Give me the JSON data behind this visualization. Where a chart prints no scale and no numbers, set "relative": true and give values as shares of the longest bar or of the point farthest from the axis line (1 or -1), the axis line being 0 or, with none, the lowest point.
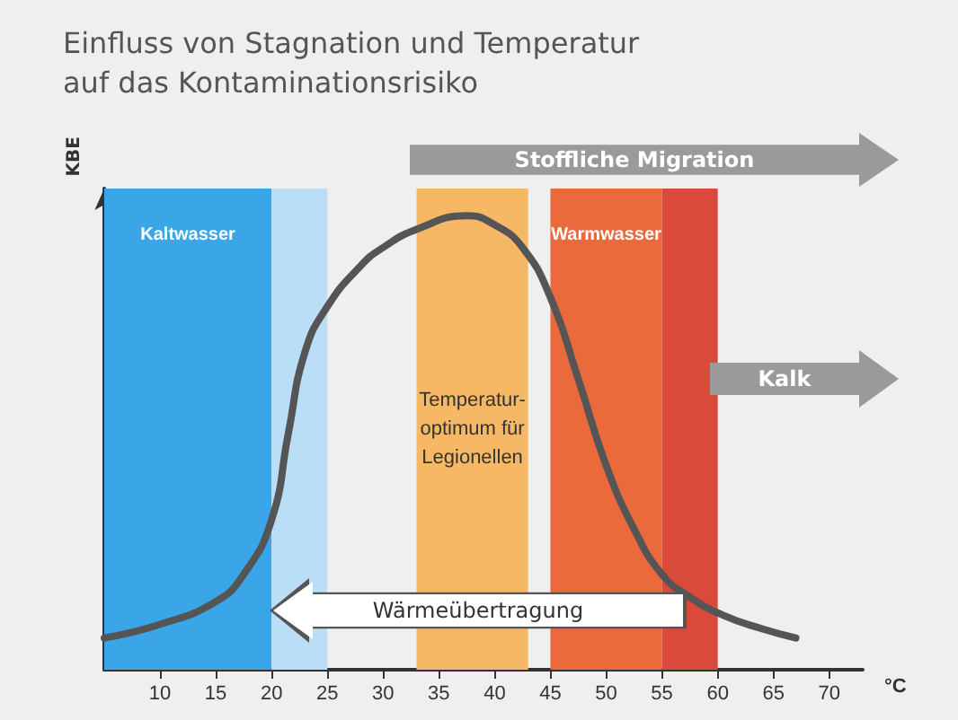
{
  "chart_data": {
    "type": "line",
    "title": "Einfluss von Stagnation und Temperatur\nauf das Kontaminationsrisiko",
    "ylabel": "KBE",
    "xlabel": "°C",
    "relative": true,
    "grid": false,
    "marker": "none",
    "line_style": "solid",
    "x": [
      5,
      10,
      15,
      17.5,
      20,
      21.5,
      23,
      25,
      28,
      30,
      33,
      37.5,
      40,
      42.5,
      45,
      47.5,
      50,
      52.5,
      55,
      57.5,
      60.5,
      64,
      67
    ],
    "series": [
      {
        "color": "#555555",
        "values": [
          0.07,
          0.1,
          0.15,
          0.21,
          0.33,
          0.52,
          0.7,
          0.8,
          0.89,
          0.93,
          0.97,
          1,
          0.98,
          0.93,
          0.82,
          0.64,
          0.45,
          0.31,
          0.21,
          0.16,
          0.12,
          0.09,
          0.07
        ]
      }
    ],
    "xlim": [
      5,
      73
    ],
    "xticks": [
      10,
      15,
      20,
      25,
      30,
      35,
      40,
      45,
      50,
      55,
      60,
      65,
      70
    ],
    "bands": [
      {
        "axis": "x",
        "from": 5,
        "to": 20,
        "label": "Kaltwasser",
        "color": "#3aa6e8"
      },
      {
        "axis": "x",
        "from": 20,
        "to": 25,
        "label": null,
        "color": "#b9def5"
      },
      {
        "axis": "x",
        "from": 33,
        "to": 43,
        "label": "Temperatur-\noptimum für\nLegionellen",
        "color": "#f7b865"
      },
      {
        "axis": "x",
        "from": 45,
        "to": 55,
        "label": "Warmwasser",
        "color": "#ea6a3c"
      },
      {
        "axis": "x",
        "from": 55,
        "to": 60,
        "label": null,
        "color": "#d94a3a"
      }
    ],
    "annotations": [
      "Stoffliche Migration",
      "Kalk",
      "Wärmeübertragung"
    ]
  }
}
